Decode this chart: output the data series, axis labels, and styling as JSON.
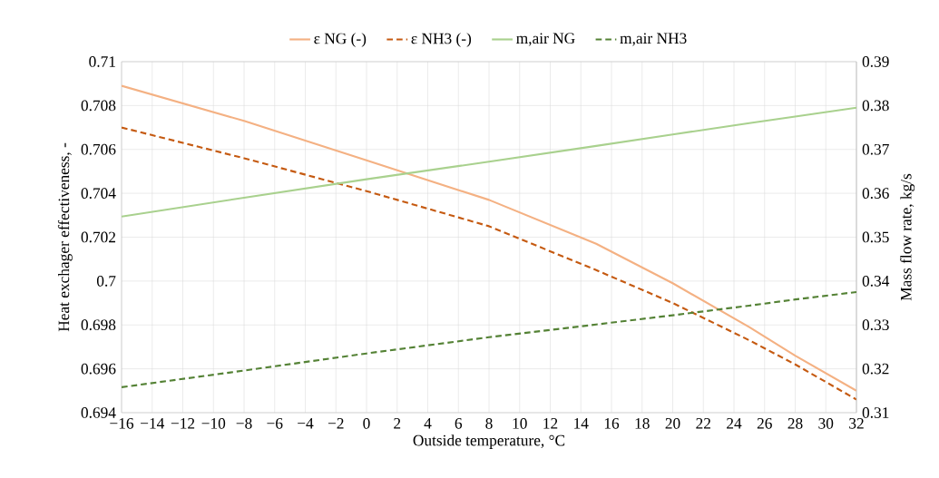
{
  "chart_data": {
    "type": "line",
    "xlabel": "Outside temperature, °C",
    "ylabel": "Heat exchager effectiveness, -",
    "y2label": "Mass flow rate, kg/s",
    "x": [
      -16,
      -8,
      0,
      8,
      15,
      20,
      25,
      28,
      32
    ],
    "series": [
      {
        "name": "ε NG (-)",
        "color": "#f4b183",
        "line_style": "solid",
        "values": [
          0.7089,
          0.7073,
          0.7055,
          0.7037,
          0.7017,
          0.6999,
          0.6979,
          0.6966,
          0.695
        ]
      },
      {
        "name": "ε NH3 (-)",
        "color": "#c55a11",
        "line_style": "dashed",
        "values": [
          0.707,
          0.7056,
          0.7041,
          0.7025,
          0.7005,
          0.699,
          0.6973,
          0.6962,
          0.6946
        ]
      },
      {
        "name": "m,air NG",
        "color": "#a9d18e",
        "line_style": "solid",
        "axis": "y2",
        "values": [
          0.3547,
          0.359,
          0.3632,
          0.3672,
          0.3708,
          0.3734,
          0.376,
          0.3775,
          0.3795
        ]
      },
      {
        "name": "m,air NH3",
        "color": "#548235",
        "line_style": "dashed",
        "axis": "y2",
        "values": [
          0.3158,
          0.3196,
          0.3235,
          0.3272,
          0.3301,
          0.3322,
          0.3344,
          0.3358,
          0.3375
        ]
      }
    ],
    "xlim": [
      -16,
      32
    ],
    "xticks": [
      {
        "value": -16,
        "label": "−16"
      },
      {
        "value": -14,
        "label": "−14"
      },
      {
        "value": -12,
        "label": "−12"
      },
      {
        "value": -10,
        "label": "−10"
      },
      {
        "value": -8,
        "label": "−8"
      },
      {
        "value": -6,
        "label": "−6"
      },
      {
        "value": -4,
        "label": "−4"
      },
      {
        "value": -2,
        "label": "−2"
      },
      0,
      2,
      4,
      6,
      8,
      10,
      12,
      14,
      16,
      18,
      20,
      22,
      24,
      26,
      28,
      30,
      32
    ],
    "ylim": [
      0.694,
      0.71
    ],
    "yticks": [
      0.694,
      0.696,
      0.698,
      0.7,
      0.702,
      0.704,
      0.706,
      0.708,
      0.71
    ],
    "y2lim": [
      0.31,
      0.39
    ],
    "y2ticks": [
      0.31,
      0.32,
      0.33,
      0.34,
      0.35,
      0.36,
      0.37,
      0.38,
      0.39
    ],
    "grid": true,
    "legend": "top",
    "marker": "none"
  }
}
